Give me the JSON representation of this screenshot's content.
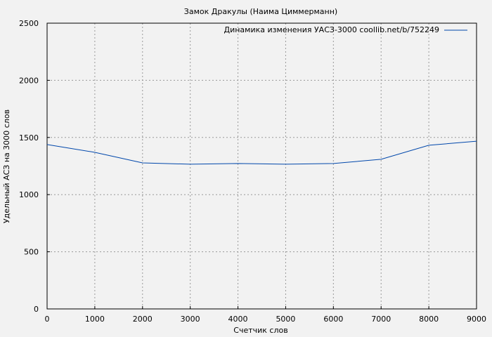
{
  "chart_data": {
    "type": "line",
    "title": "Замок Дракулы (Наима Циммерманн)",
    "xlabel": "Счетчик слов",
    "ylabel": "Удельный АСЗ на 3000 слов",
    "xlim": [
      0,
      9000
    ],
    "ylim": [
      0,
      2500
    ],
    "xticks": [
      0,
      1000,
      2000,
      3000,
      4000,
      5000,
      6000,
      7000,
      8000,
      9000
    ],
    "yticks": [
      0,
      500,
      1000,
      1500,
      2000,
      2500
    ],
    "grid": true,
    "legend_position": "top-right",
    "series": [
      {
        "name": "Динамика изменения УАСЗ-3000 coollib.net/b/752249",
        "color": "#0047ab",
        "x": [
          0,
          1000,
          2000,
          3000,
          4000,
          5000,
          6000,
          7000,
          8000,
          9000
        ],
        "y": [
          1438,
          1370,
          1278,
          1266,
          1272,
          1266,
          1272,
          1309,
          1432,
          1467
        ]
      }
    ]
  }
}
